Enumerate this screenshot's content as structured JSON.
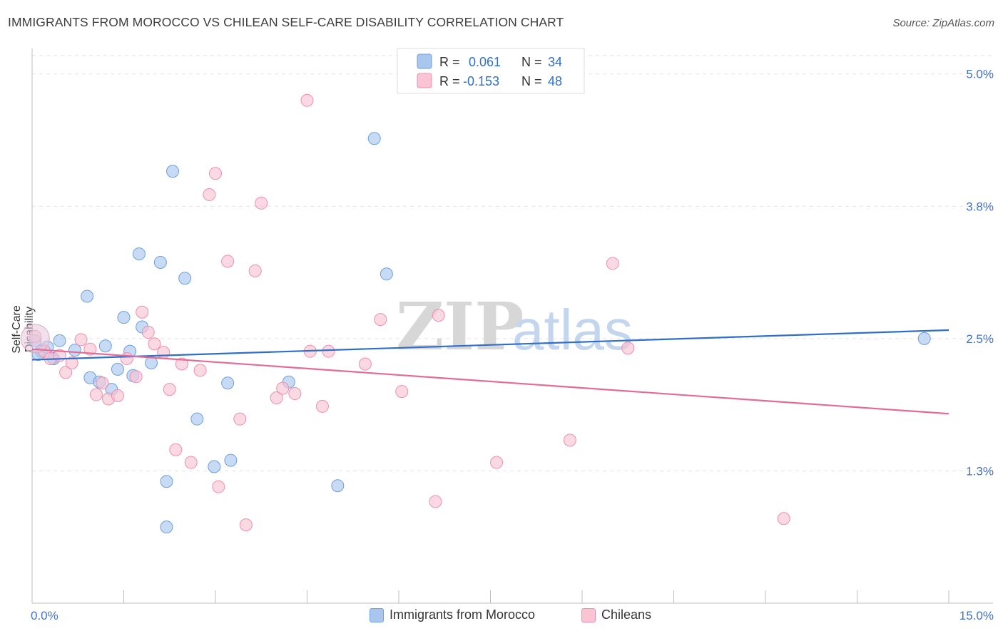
{
  "title": "IMMIGRANTS FROM MOROCCO VS CHILEAN SELF-CARE DISABILITY CORRELATION CHART",
  "source": "Source: ZipAtlas.com",
  "watermark": {
    "part1": "ZIP",
    "part2": "atlas"
  },
  "legend": {
    "rows": [
      {
        "r_label": "R = ",
        "r_value": "0.061",
        "n_label": "N = ",
        "n_value": "34"
      },
      {
        "r_label": "R = ",
        "r_value": "-0.153",
        "n_label": "N = ",
        "n_value": "48"
      }
    ]
  },
  "bottom_legend": {
    "items": [
      "Immigrants from Morocco",
      "Chileans"
    ]
  },
  "chart_data": {
    "type": "scatter",
    "ylabel": "Self-Care Disability",
    "xlim": [
      0,
      15
    ],
    "ylim": [
      0,
      5.2
    ],
    "x_tick_labels": [
      {
        "value": 0,
        "label": "0.0%"
      },
      {
        "value": 15,
        "label": "15.0%"
      }
    ],
    "y_tick_labels": [
      {
        "value": 5.0,
        "label": "5.0%"
      },
      {
        "value": 3.75,
        "label": "3.8%"
      },
      {
        "value": 2.5,
        "label": "2.5%"
      },
      {
        "value": 1.25,
        "label": "1.3%"
      }
    ],
    "grid": true,
    "legend_position": "top-center",
    "series": [
      {
        "name": "Immigrants from Morocco",
        "color": "#a9c7ee",
        "stroke": "#6f9fdc",
        "line_color": "#2f6fc9",
        "points": [
          [
            0.05,
            2.48
          ],
          [
            0.15,
            2.38
          ],
          [
            0.25,
            2.42
          ],
          [
            0.35,
            2.31
          ],
          [
            0.45,
            2.48
          ],
          [
            0.7,
            2.39
          ],
          [
            0.9,
            2.9
          ],
          [
            0.95,
            2.13
          ],
          [
            1.1,
            2.09
          ],
          [
            1.2,
            2.43
          ],
          [
            1.3,
            2.02
          ],
          [
            1.4,
            2.21
          ],
          [
            1.5,
            2.7
          ],
          [
            1.6,
            2.38
          ],
          [
            1.65,
            2.15
          ],
          [
            1.75,
            3.3
          ],
          [
            1.8,
            2.61
          ],
          [
            1.95,
            2.27
          ],
          [
            2.1,
            3.22
          ],
          [
            2.2,
            0.72
          ],
          [
            2.2,
            1.15
          ],
          [
            2.3,
            4.08
          ],
          [
            2.5,
            3.07
          ],
          [
            2.7,
            1.74
          ],
          [
            2.98,
            1.29
          ],
          [
            3.2,
            2.08
          ],
          [
            3.25,
            1.35
          ],
          [
            4.2,
            2.09
          ],
          [
            5.0,
            1.11
          ],
          [
            5.6,
            4.39
          ],
          [
            5.8,
            3.11
          ],
          [
            14.6,
            2.5
          ],
          [
            0.1,
            2.35
          ],
          [
            0.35,
            2.31
          ]
        ],
        "trend": [
          [
            0,
            2.3
          ],
          [
            15,
            2.58
          ]
        ]
      },
      {
        "name": "Chileans",
        "color": "#f9c4d4",
        "stroke": "#ec8fae",
        "line_color": "#e36c97",
        "points": [
          [
            0.05,
            2.52
          ],
          [
            0.2,
            2.38
          ],
          [
            0.3,
            2.31
          ],
          [
            0.55,
            2.18
          ],
          [
            0.65,
            2.27
          ],
          [
            0.8,
            2.49
          ],
          [
            0.95,
            2.4
          ],
          [
            1.05,
            1.97
          ],
          [
            1.15,
            2.08
          ],
          [
            1.25,
            1.93
          ],
          [
            1.4,
            1.96
          ],
          [
            1.55,
            2.31
          ],
          [
            1.7,
            2.14
          ],
          [
            1.8,
            2.75
          ],
          [
            1.9,
            2.56
          ],
          [
            2.0,
            2.45
          ],
          [
            2.15,
            2.37
          ],
          [
            2.25,
            2.02
          ],
          [
            2.35,
            1.45
          ],
          [
            2.45,
            2.26
          ],
          [
            2.6,
            1.33
          ],
          [
            2.75,
            2.2
          ],
          [
            2.9,
            3.86
          ],
          [
            3.0,
            4.06
          ],
          [
            3.05,
            1.1
          ],
          [
            3.2,
            3.23
          ],
          [
            3.4,
            1.74
          ],
          [
            3.5,
            0.74
          ],
          [
            3.65,
            3.14
          ],
          [
            3.75,
            3.78
          ],
          [
            4.0,
            1.94
          ],
          [
            4.1,
            2.03
          ],
          [
            4.3,
            1.98
          ],
          [
            4.5,
            4.75
          ],
          [
            4.55,
            2.38
          ],
          [
            4.75,
            1.86
          ],
          [
            4.85,
            2.38
          ],
          [
            5.45,
            2.26
          ],
          [
            5.7,
            2.68
          ],
          [
            6.05,
            2.0
          ],
          [
            6.6,
            0.96
          ],
          [
            6.65,
            2.72
          ],
          [
            7.6,
            1.33
          ],
          [
            8.8,
            1.54
          ],
          [
            9.5,
            3.21
          ],
          [
            9.75,
            2.41
          ],
          [
            12.3,
            0.8
          ],
          [
            0.45,
            2.34
          ]
        ],
        "trend": [
          [
            0,
            2.4
          ],
          [
            15,
            1.79
          ]
        ]
      }
    ]
  }
}
